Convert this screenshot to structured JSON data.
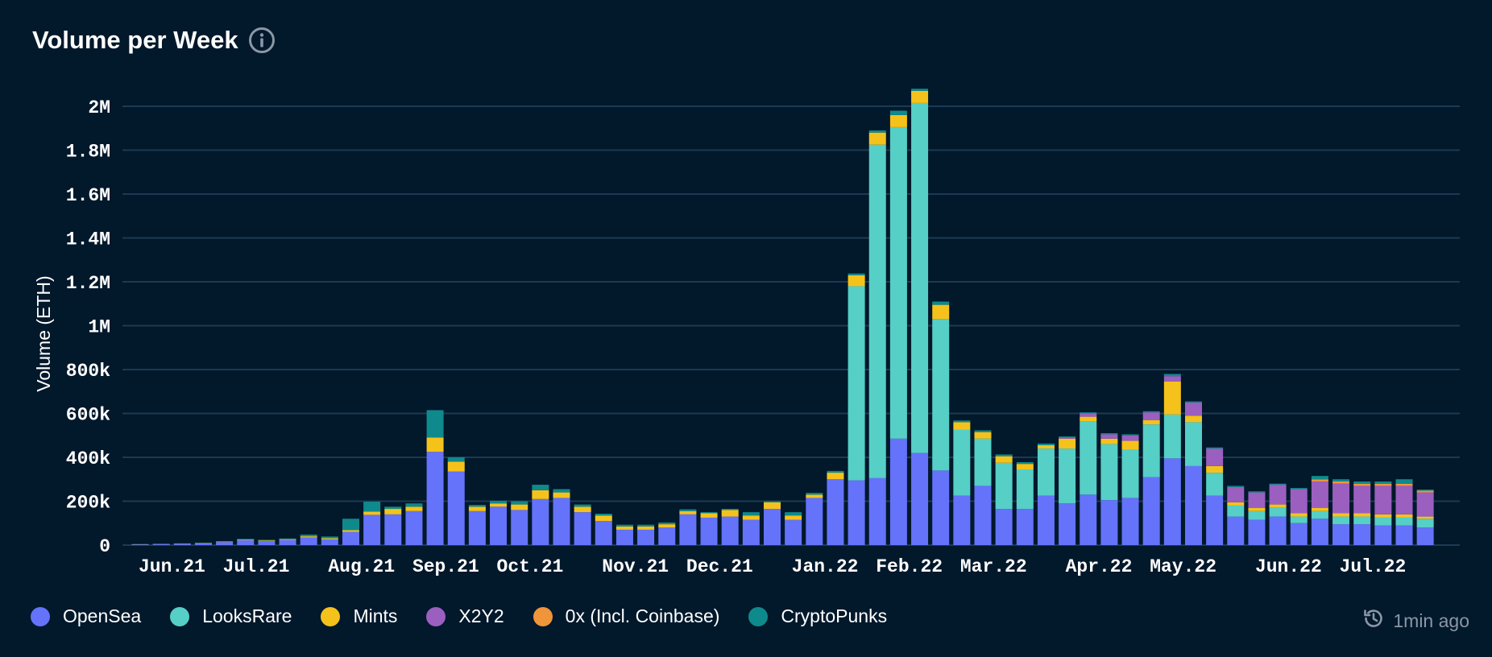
{
  "title": "Volume per Week",
  "updated_text": "1min ago",
  "colors": {
    "background": "#02182b",
    "grid": "#1c3a52",
    "OpenSea": "#6473fa",
    "LooksRare": "#56cfc6",
    "Mints": "#f5c21b",
    "X2Y2": "#9b5fc0",
    "0x (Incl. Coinbase)": "#f0953a",
    "CryptoPunks": "#0f8a8c"
  },
  "legend": [
    "OpenSea",
    "LooksRare",
    "Mints",
    "X2Y2",
    "0x (Incl. Coinbase)",
    "CryptoPunks"
  ],
  "chart_data": {
    "type": "bar",
    "stacked": true,
    "ylabel": "Volume (ETH)",
    "ylim": [
      0,
      2000000
    ],
    "yticks": [
      0,
      200000,
      400000,
      600000,
      800000,
      1000000,
      1200000,
      1400000,
      1600000,
      1800000,
      2000000
    ],
    "ytick_labels": [
      "0",
      "200k",
      "400k",
      "600k",
      "800k",
      "1M",
      "1.2M",
      "1.4M",
      "1.6M",
      "1.8M",
      "2M"
    ],
    "grid": true,
    "legend_position": "bottom-left",
    "x_labels": [
      {
        "label": "Jun.21",
        "week": 0
      },
      {
        "label": "Jul.21",
        "week": 4
      },
      {
        "label": "Aug.21",
        "week": 9
      },
      {
        "label": "Sep.21",
        "week": 13
      },
      {
        "label": "Oct.21",
        "week": 17
      },
      {
        "label": "Nov.21",
        "week": 22
      },
      {
        "label": "Dec.21",
        "week": 26
      },
      {
        "label": "Jan.22",
        "week": 31
      },
      {
        "label": "Feb.22",
        "week": 35
      },
      {
        "label": "Mar.22",
        "week": 39
      },
      {
        "label": "Apr.22",
        "week": 44
      },
      {
        "label": "May.22",
        "week": 48
      },
      {
        "label": "Jun.22",
        "week": 53
      },
      {
        "label": "Jul.22",
        "week": 57
      }
    ],
    "series": [
      {
        "name": "OpenSea",
        "values": [
          3000,
          4000,
          6000,
          8000,
          14000,
          22000,
          18000,
          24000,
          35000,
          26000,
          60000,
          138000,
          140000,
          155000,
          425000,
          335000,
          155000,
          175000,
          160000,
          210000,
          215000,
          150000,
          110000,
          70000,
          70000,
          80000,
          140000,
          125000,
          130000,
          115000,
          165000,
          115000,
          215000,
          300000,
          295000,
          305000,
          485000,
          420000,
          340000,
          225000,
          270000,
          165000,
          165000,
          225000,
          190000,
          230000,
          205000,
          215000,
          310000,
          395000,
          360000,
          225000,
          130000,
          115000,
          130000,
          100000,
          120000,
          95000,
          95000,
          90000,
          90000,
          80000
        ]
      },
      {
        "name": "LooksRare",
        "values": [
          0,
          0,
          0,
          0,
          0,
          0,
          0,
          0,
          0,
          0,
          0,
          0,
          0,
          0,
          0,
          0,
          0,
          0,
          0,
          0,
          0,
          0,
          0,
          0,
          0,
          0,
          0,
          0,
          0,
          0,
          0,
          0,
          0,
          0,
          885000,
          1520000,
          1420000,
          1595000,
          690000,
          300000,
          215000,
          210000,
          180000,
          215000,
          250000,
          335000,
          255000,
          220000,
          240000,
          200000,
          200000,
          105000,
          50000,
          40000,
          40000,
          30000,
          35000,
          35000,
          35000,
          35000,
          35000,
          40000
        ]
      },
      {
        "name": "Mints",
        "values": [
          1000,
          1000,
          1000,
          1000,
          2000,
          3000,
          3000,
          3000,
          5000,
          5000,
          8000,
          15000,
          25000,
          20000,
          65000,
          45000,
          20000,
          15000,
          25000,
          40000,
          25000,
          25000,
          25000,
          15000,
          15000,
          15000,
          15000,
          20000,
          30000,
          20000,
          30000,
          20000,
          15000,
          30000,
          50000,
          55000,
          55000,
          55000,
          65000,
          35000,
          30000,
          30000,
          25000,
          15000,
          45000,
          20000,
          25000,
          40000,
          20000,
          150000,
          30000,
          30000,
          15000,
          15000,
          15000,
          15000,
          15000,
          15000,
          15000,
          15000,
          15000,
          10000
        ]
      },
      {
        "name": "X2Y2",
        "values": [
          0,
          0,
          0,
          0,
          0,
          0,
          0,
          0,
          0,
          0,
          0,
          0,
          0,
          0,
          0,
          0,
          0,
          0,
          0,
          0,
          0,
          0,
          0,
          0,
          0,
          0,
          0,
          0,
          0,
          0,
          0,
          0,
          0,
          0,
          0,
          0,
          0,
          0,
          0,
          0,
          0,
          0,
          0,
          0,
          5000,
          15000,
          20000,
          25000,
          35000,
          25000,
          60000,
          80000,
          70000,
          70000,
          90000,
          110000,
          120000,
          135000,
          125000,
          130000,
          130000,
          110000
        ]
      },
      {
        "name": "0x (Incl. Coinbase)",
        "values": [
          0,
          0,
          0,
          0,
          0,
          0,
          0,
          0,
          0,
          0,
          0,
          0,
          0,
          0,
          0,
          0,
          0,
          0,
          0,
          0,
          0,
          0,
          0,
          0,
          0,
          0,
          0,
          0,
          0,
          0,
          0,
          0,
          0,
          0,
          0,
          0,
          0,
          0,
          0,
          0,
          0,
          0,
          0,
          0,
          0,
          0,
          0,
          0,
          0,
          0,
          0,
          0,
          0,
          0,
          0,
          0,
          10000,
          10000,
          10000,
          10000,
          10000,
          8000
        ]
      },
      {
        "name": "CryptoPunks",
        "values": [
          1000,
          1000,
          1000,
          2000,
          2000,
          3000,
          3000,
          3000,
          8000,
          8000,
          52000,
          45000,
          10000,
          15000,
          125000,
          20000,
          8000,
          12000,
          15000,
          25000,
          15000,
          10000,
          8000,
          8000,
          8000,
          8000,
          8000,
          5000,
          5000,
          15000,
          5000,
          15000,
          8000,
          8000,
          8000,
          10000,
          20000,
          10000,
          15000,
          8000,
          8000,
          8000,
          8000,
          8000,
          5000,
          5000,
          5000,
          5000,
          5000,
          10000,
          5000,
          5000,
          5000,
          5000,
          5000,
          5000,
          15000,
          10000,
          10000,
          10000,
          20000,
          5000
        ]
      }
    ]
  }
}
